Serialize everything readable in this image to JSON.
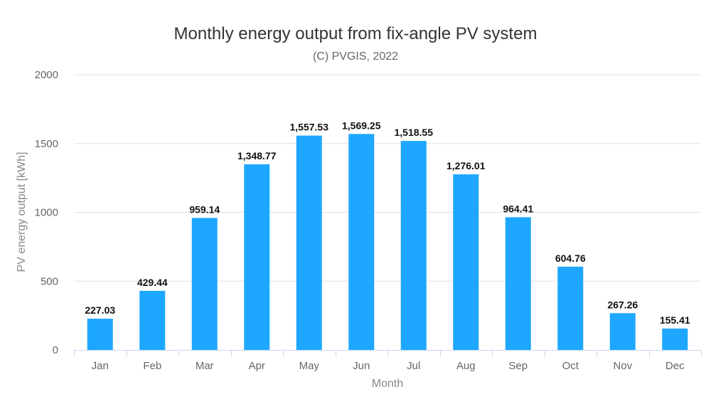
{
  "chart_data": {
    "type": "bar",
    "title": "Monthly energy output from fix-angle PV system",
    "subtitle": "(C) PVGIS, 2022",
    "xlabel": "Month",
    "ylabel": "PV energy output [kWh]",
    "ylim": [
      0,
      2000
    ],
    "yticks": [
      0,
      500,
      1000,
      1500,
      2000
    ],
    "ytick_labels": [
      "0",
      "500",
      "1000",
      "1500",
      "2000"
    ],
    "grid": true,
    "categories": [
      "Jan",
      "Feb",
      "Mar",
      "Apr",
      "May",
      "Jun",
      "Jul",
      "Aug",
      "Sep",
      "Oct",
      "Nov",
      "Dec"
    ],
    "values": [
      227.03,
      429.44,
      959.14,
      1348.77,
      1557.53,
      1569.25,
      1518.55,
      1276.01,
      964.41,
      604.76,
      267.26,
      155.41
    ],
    "data_labels": [
      "227.03",
      "429.44",
      "959.14",
      "1,348.77",
      "1,557.53",
      "1,569.25",
      "1,518.55",
      "1,276.01",
      "964.41",
      "604.76",
      "267.26",
      "155.41"
    ],
    "bar_color": "#1EA7FF",
    "grid_color": "#E0E0E0",
    "axis_color": "#CCD6EB"
  }
}
